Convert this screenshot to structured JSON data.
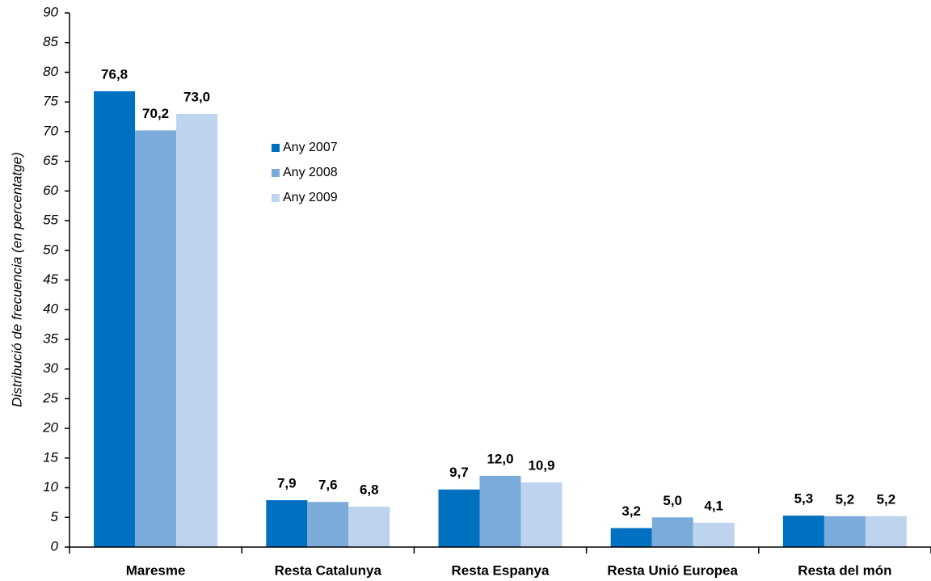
{
  "chart_data": {
    "type": "bar",
    "y_label": "Distribució de frecuencia  (en percentatge)",
    "categories": [
      "Maresme",
      "Resta Catalunya",
      "Resta Espanya",
      "Resta Unió Europea",
      "Resta del món"
    ],
    "series": [
      {
        "name": "Any 2007",
        "color": "#0070c0",
        "values": [
          76.8,
          7.9,
          9.7,
          3.2,
          5.3
        ],
        "value_labels": [
          "76,8",
          "7,9",
          "9,7",
          "3,2",
          "5,3"
        ]
      },
      {
        "name": "Any 2008",
        "color": "#7aabdb",
        "values": [
          70.2,
          7.6,
          12.0,
          5.0,
          5.2
        ],
        "value_labels": [
          "70,2",
          "7,6",
          "12,0",
          "5,0",
          "5,2"
        ]
      },
      {
        "name": "Any 2009",
        "color": "#bdd3ee",
        "values": [
          73.0,
          6.8,
          10.9,
          4.1,
          5.2
        ],
        "value_labels": [
          "73,0",
          "6,8",
          "10,9",
          "4,1",
          "5,2"
        ]
      }
    ],
    "ylim": [
      0,
      90
    ],
    "yticks": [
      0,
      5,
      10,
      15,
      20,
      25,
      30,
      35,
      40,
      45,
      50,
      55,
      60,
      65,
      70,
      75,
      80,
      85,
      90
    ],
    "grid": false
  }
}
